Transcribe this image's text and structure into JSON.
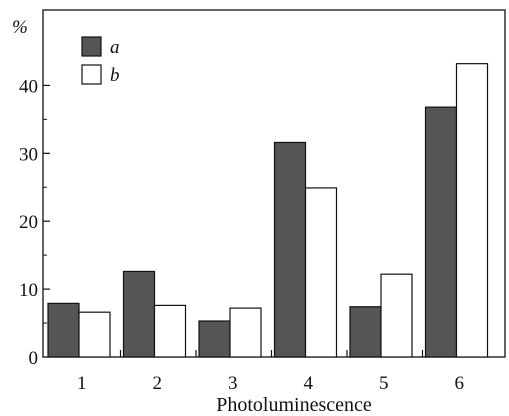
{
  "chart_data": {
    "type": "bar",
    "categories": [
      "1",
      "2",
      "3",
      "4",
      "5",
      "6"
    ],
    "series": [
      {
        "name": "a",
        "values": [
          7.9,
          12.6,
          5.3,
          31.6,
          7.4,
          36.8
        ],
        "color": "#555555"
      },
      {
        "name": "b",
        "values": [
          6.6,
          7.6,
          7.2,
          24.9,
          12.2,
          43.2
        ],
        "color": "#ffffff"
      }
    ],
    "title": "",
    "xlabel": "Photoluminescence",
    "ylabel": "%",
    "ylim": [
      0,
      50
    ],
    "yticks": [
      0,
      10,
      20,
      30,
      40
    ],
    "grid": false,
    "legend_position": "top-left"
  }
}
